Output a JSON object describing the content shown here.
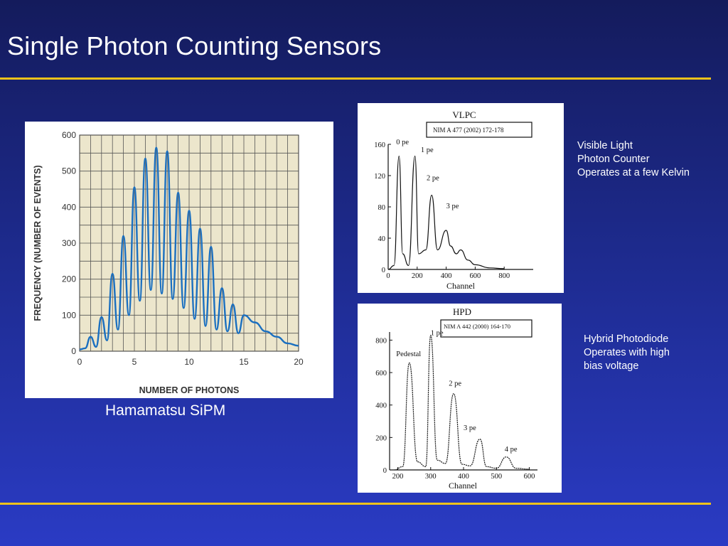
{
  "slide": {
    "title": "Single Photon Counting Sensors",
    "sipm_caption": "Hamamatsu SiPM",
    "vlpc_description": [
      "Visible Light",
      "Photon Counter",
      "Operates at a few Kelvin"
    ],
    "hpd_description": [
      "Hybrid Photodiode",
      "Operates with high",
      "bias voltage"
    ],
    "colors": {
      "rule": "#f0c21a",
      "background": "#1d2a8c",
      "trace": "#1a6fc0"
    }
  },
  "chart_data": [
    {
      "type": "line",
      "title": "",
      "xlabel": "NUMBER OF PHOTONS",
      "ylabel": "FREQUENCY (NUMBER OF EVENTS)",
      "xlim": [
        0,
        20
      ],
      "ylim": [
        0,
        600
      ],
      "xticks": [
        "0",
        "5",
        "10",
        "15",
        "20"
      ],
      "yticks": [
        "0",
        "100",
        "200",
        "300",
        "400",
        "500",
        "600"
      ],
      "grid": true,
      "series": [
        {
          "x": [
            0,
            0.5,
            1.0,
            1.5,
            2.0,
            2.5,
            3.0,
            3.5,
            4.0,
            4.5,
            5.0,
            5.5,
            6.0,
            6.5,
            7.0,
            7.5,
            8.0,
            8.5,
            9.0,
            9.5,
            10.0,
            10.5,
            11.0,
            11.5,
            12.0,
            12.5,
            13.0,
            13.5,
            14.0,
            14.5,
            15.0,
            16.0,
            17.0,
            18.0,
            19.0,
            20.0
          ],
          "y": [
            5,
            8,
            40,
            12,
            95,
            30,
            215,
            60,
            320,
            100,
            455,
            140,
            535,
            170,
            565,
            160,
            555,
            145,
            440,
            120,
            390,
            90,
            340,
            70,
            290,
            60,
            175,
            55,
            130,
            50,
            100,
            80,
            55,
            40,
            22,
            15
          ]
        }
      ]
    },
    {
      "type": "line",
      "title": "VLPC",
      "annotation": "NIM A 477 (2002) 172-178",
      "xlabel": "Channel",
      "ylabel": "",
      "xlim": [
        0,
        1000
      ],
      "ylim": [
        0,
        160
      ],
      "xticks": [
        "0",
        "200",
        "400",
        "600",
        "800"
      ],
      "yticks": [
        "0",
        "40",
        "80",
        "120",
        "160"
      ],
      "peak_labels": [
        "0 pe",
        "1 pe",
        "2 pe",
        "3 pe"
      ],
      "series": [
        {
          "x": [
            0,
            40,
            75,
            100,
            140,
            185,
            210,
            260,
            300,
            340,
            400,
            430,
            470,
            500,
            550,
            600,
            700,
            800
          ],
          "y": [
            0,
            5,
            145,
            20,
            5,
            145,
            20,
            25,
            95,
            25,
            50,
            30,
            20,
            25,
            12,
            6,
            2,
            1
          ]
        }
      ]
    },
    {
      "type": "line",
      "title": "HPD",
      "annotation": "NIM A 442 (2000) 164-170",
      "xlabel": "Channel",
      "ylabel": "",
      "xlim": [
        175,
        625
      ],
      "ylim": [
        0,
        850
      ],
      "xticks": [
        "200",
        "300",
        "400",
        "500",
        "600"
      ],
      "yticks": [
        "0",
        "200",
        "400",
        "600",
        "800"
      ],
      "peak_labels": [
        "Pedestal",
        "1 pe",
        "2 pe",
        "3 pe",
        "4 pe"
      ],
      "series": [
        {
          "x": [
            190,
            215,
            235,
            260,
            285,
            300,
            320,
            345,
            370,
            395,
            420,
            450,
            470,
            500,
            530,
            560,
            600
          ],
          "y": [
            0,
            20,
            660,
            50,
            20,
            830,
            60,
            40,
            470,
            35,
            25,
            190,
            20,
            10,
            80,
            10,
            5
          ]
        }
      ]
    }
  ]
}
